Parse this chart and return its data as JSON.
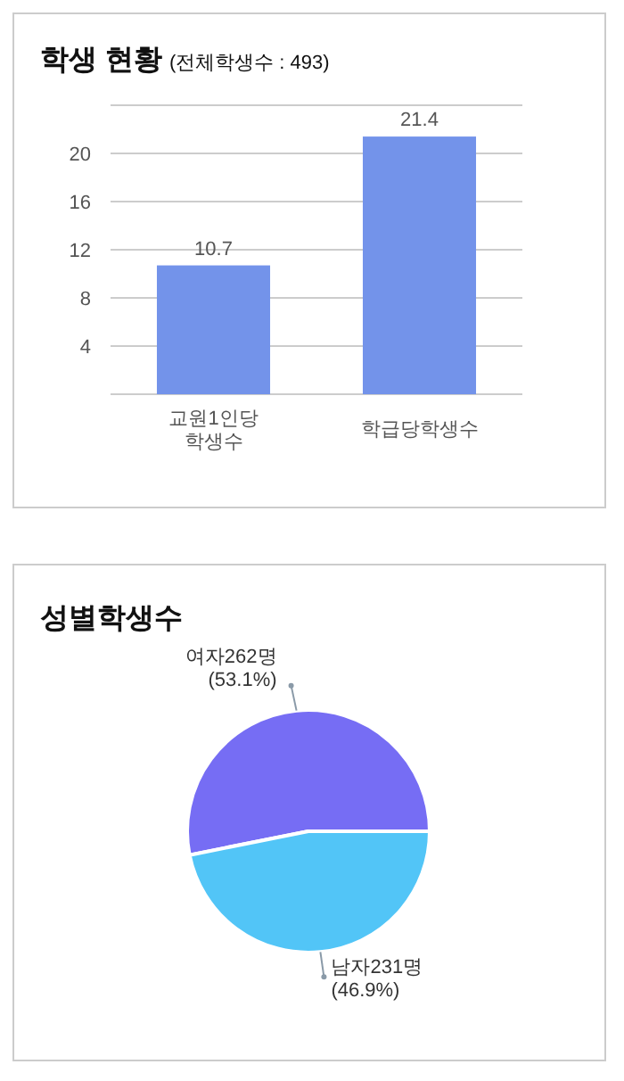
{
  "chart_data": [
    {
      "type": "bar",
      "title": "학생 현황",
      "subtitle": "(전체학생수 : 493)",
      "categories": [
        "교원1인당 학생수",
        "학급당학생수"
      ],
      "values": [
        10.7,
        21.4
      ],
      "color": "#7393ea",
      "ylim": [
        0,
        24
      ],
      "yticks": [
        {
          "value": 0,
          "label": null
        },
        4,
        8,
        12,
        16,
        20,
        {
          "value": 24,
          "label": null
        }
      ],
      "grid": "y",
      "data_labels": true
    },
    {
      "type": "pie",
      "title": "성별학생수",
      "categories": [
        "여자",
        "남자"
      ],
      "values": [
        262,
        231
      ],
      "colors": [
        "#766df4",
        "#52c5f7"
      ],
      "value_labels": [
        "262명 (53.1%)",
        "231명 (46.9%)"
      ]
    }
  ]
}
